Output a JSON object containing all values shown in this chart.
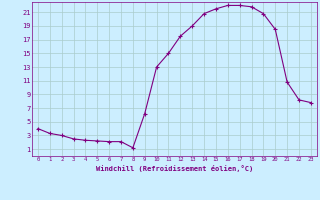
{
  "x": [
    0,
    1,
    2,
    3,
    4,
    5,
    6,
    7,
    8,
    9,
    10,
    11,
    12,
    13,
    14,
    15,
    16,
    17,
    18,
    19,
    20,
    21,
    22,
    23
  ],
  "y": [
    4.0,
    3.3,
    3.0,
    2.5,
    2.3,
    2.2,
    2.1,
    2.1,
    1.2,
    6.2,
    13.0,
    15.0,
    17.5,
    19.0,
    20.8,
    21.5,
    22.0,
    22.0,
    21.8,
    20.8,
    18.5,
    10.8,
    8.2,
    7.8
  ],
  "line_color": "#800080",
  "marker": "+",
  "marker_size": 3,
  "bg_color": "#cceeff",
  "grid_color": "#aacccc",
  "xlabel": "Windchill (Refroidissement éolien,°C)",
  "xlabel_color": "#800080",
  "tick_color": "#800080",
  "xlim": [
    -0.5,
    23.5
  ],
  "ylim": [
    0,
    22.5
  ],
  "xticks": [
    0,
    1,
    2,
    3,
    4,
    5,
    6,
    7,
    8,
    9,
    10,
    11,
    12,
    13,
    14,
    15,
    16,
    17,
    18,
    19,
    20,
    21,
    22,
    23
  ],
  "yticks": [
    1,
    3,
    5,
    7,
    9,
    11,
    13,
    15,
    17,
    19,
    21
  ],
  "line_width": 0.8
}
